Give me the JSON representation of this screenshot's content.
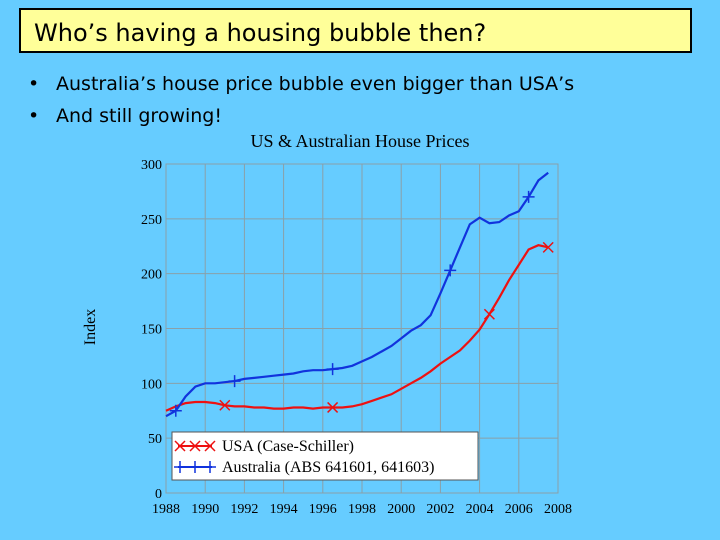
{
  "slide": {
    "title": "Who’s having a housing bubble then?",
    "bullets": [
      "Australia’s house price bubble even bigger than USA’s",
      "And still growing!"
    ]
  },
  "colors": {
    "background": "#66ccff",
    "title_fill": "#ffff99",
    "usa": "#ee1111",
    "australia": "#1133dd"
  },
  "chart_data": {
    "type": "line",
    "title": "US & Australian House Prices",
    "ylabel": "Index",
    "xlabel": "",
    "xlim": [
      1988,
      2008
    ],
    "ylim": [
      0,
      300
    ],
    "x_ticks": [
      "1988",
      "1990",
      "1992",
      "1994",
      "1996",
      "1998",
      "2000",
      "2002",
      "2004",
      "2006",
      "2008"
    ],
    "y_ticks": [
      "0",
      "50",
      "100",
      "150",
      "200",
      "250",
      "300"
    ],
    "grid": true,
    "legend": "bottom-left",
    "series": [
      {
        "name": "USA (Case-Schiller)",
        "marker": "x",
        "x": [
          1988,
          1988.5,
          1989,
          1989.5,
          1990,
          1990.5,
          1991,
          1991.5,
          1992,
          1992.5,
          1993,
          1993.5,
          1994,
          1994.5,
          1995,
          1995.5,
          1996,
          1996.5,
          1997,
          1997.5,
          1998,
          1998.5,
          1999,
          1999.5,
          2000,
          2000.5,
          2001,
          2001.5,
          2002,
          2002.5,
          2003,
          2003.5,
          2004,
          2004.5,
          2005,
          2005.5,
          2006,
          2006.5,
          2007,
          2007.5
        ],
        "y": [
          75,
          79,
          82,
          83,
          83,
          82,
          80,
          79,
          79,
          78,
          78,
          77,
          77,
          78,
          78,
          77,
          78,
          78,
          78,
          79,
          81,
          84,
          87,
          90,
          95,
          100,
          105,
          111,
          118,
          124,
          130,
          139,
          149,
          163,
          178,
          194,
          208,
          222,
          226,
          224
        ]
      },
      {
        "name": "Australia (ABS 641601, 641603)",
        "marker": "+",
        "x": [
          1988,
          1988.5,
          1989,
          1989.5,
          1990,
          1990.5,
          1991,
          1991.5,
          1992,
          1992.5,
          1993,
          1993.5,
          1994,
          1994.5,
          1995,
          1995.5,
          1996,
          1996.5,
          1997,
          1997.5,
          1998,
          1998.5,
          1999,
          1999.5,
          2000,
          2000.5,
          2001,
          2001.5,
          2002,
          2002.5,
          2003,
          2003.5,
          2004,
          2004.5,
          2005,
          2005.5,
          2006,
          2006.5,
          2007,
          2007.5
        ],
        "y": [
          70,
          75,
          88,
          97,
          100,
          100,
          101,
          102,
          104,
          105,
          106,
          107,
          108,
          109,
          111,
          112,
          112,
          113,
          114,
          116,
          120,
          124,
          129,
          134,
          141,
          148,
          153,
          162,
          182,
          203,
          224,
          245,
          251,
          246,
          247,
          253,
          257,
          270,
          285,
          292
        ]
      }
    ]
  }
}
